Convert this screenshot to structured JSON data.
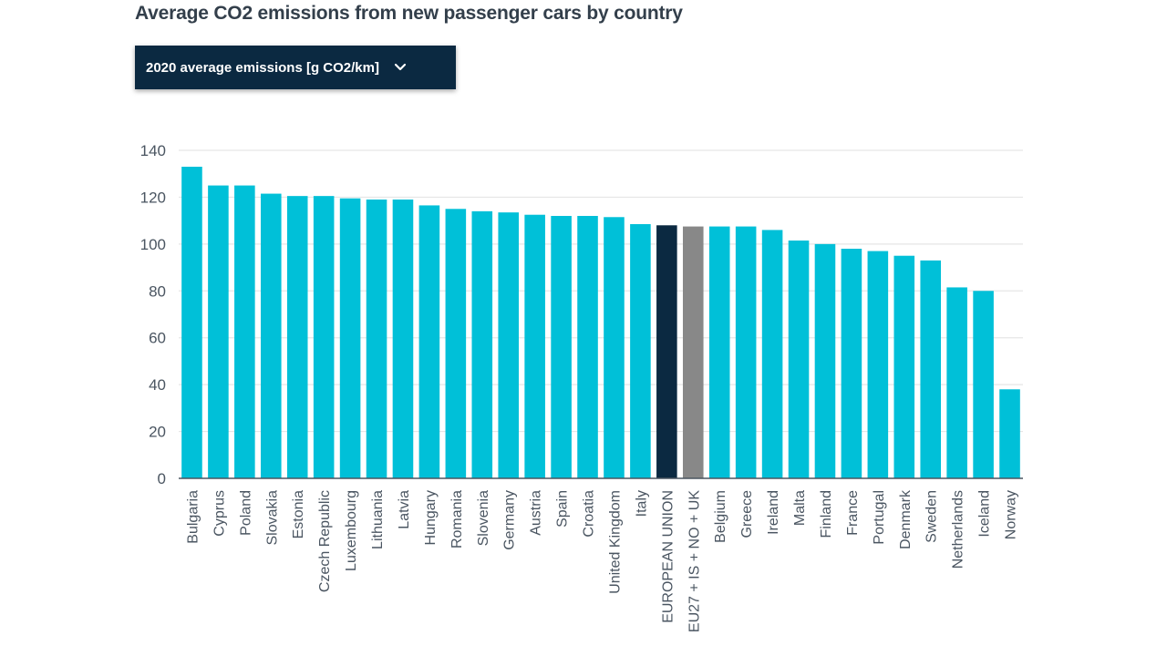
{
  "title": "Average CO2 emissions from new passenger cars by country",
  "selector": {
    "label": "2020 average emissions [g CO2/km]",
    "icon": "chevron-down-icon"
  },
  "colors": {
    "country": "#00c0d8",
    "eu": "#0b2941",
    "eu_plus": "#888888",
    "grid": "#e6e6e6",
    "axis": "#4a5561"
  },
  "chart_data": {
    "type": "bar",
    "title": "Average CO2 emissions from new passenger cars by country",
    "xlabel": "",
    "ylabel": "",
    "ylim": [
      0,
      140
    ],
    "yticks": [
      0,
      20,
      40,
      60,
      80,
      100,
      120,
      140
    ],
    "grid": true,
    "categories": [
      "Bulgaria",
      "Cyprus",
      "Poland",
      "Slovakia",
      "Estonia",
      "Czech Republic",
      "Luxembourg",
      "Lithuania",
      "Latvia",
      "Hungary",
      "Romania",
      "Slovenia",
      "Germany",
      "Austria",
      "Spain",
      "Croatia",
      "United Kingdom",
      "Italy",
      "EUROPEAN UNION",
      "EU27 + IS + NO + UK",
      "Belgium",
      "Greece",
      "Ireland",
      "Malta",
      "Finland",
      "France",
      "Portugal",
      "Denmark",
      "Sweden",
      "Netherlands",
      "Iceland",
      "Norway"
    ],
    "values": [
      133,
      125,
      125,
      121.5,
      120.5,
      120.5,
      119.5,
      119,
      119,
      116.5,
      115,
      114,
      113.5,
      112.5,
      112,
      112,
      111.5,
      108.5,
      108,
      107.5,
      107.5,
      107.5,
      106,
      101.5,
      100,
      98,
      97,
      95,
      93,
      81.5,
      80,
      38
    ],
    "highlight": {
      "EUROPEAN UNION": "eu",
      "EU27 + IS + NO + UK": "eu_plus"
    }
  }
}
